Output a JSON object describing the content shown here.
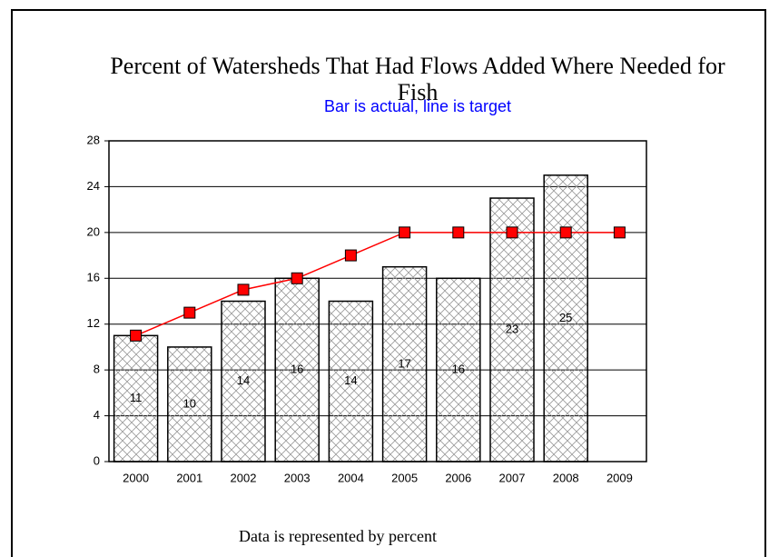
{
  "chart_data": {
    "type": "bar",
    "title": "Percent of Watersheds That Had Flows Added Where Needed for Fish",
    "subtitle": "Bar is actual, line is target",
    "note": "Data is represented by percent",
    "categories": [
      "2000",
      "2001",
      "2002",
      "2003",
      "2004",
      "2005",
      "2006",
      "2007",
      "2008",
      "2009"
    ],
    "series": [
      {
        "name": "actual",
        "color": "#ffffff",
        "values": [
          11,
          10,
          14,
          16,
          14,
          17,
          16,
          23,
          25,
          null
        ]
      },
      {
        "name": "target",
        "color": "#ff0000",
        "values": [
          11,
          13,
          15,
          16,
          18,
          20,
          20,
          20,
          20,
          20
        ]
      }
    ],
    "ylim": [
      0,
      28
    ],
    "yticks": [
      0,
      4,
      8,
      12,
      16,
      20,
      24,
      28
    ],
    "grid": true
  }
}
